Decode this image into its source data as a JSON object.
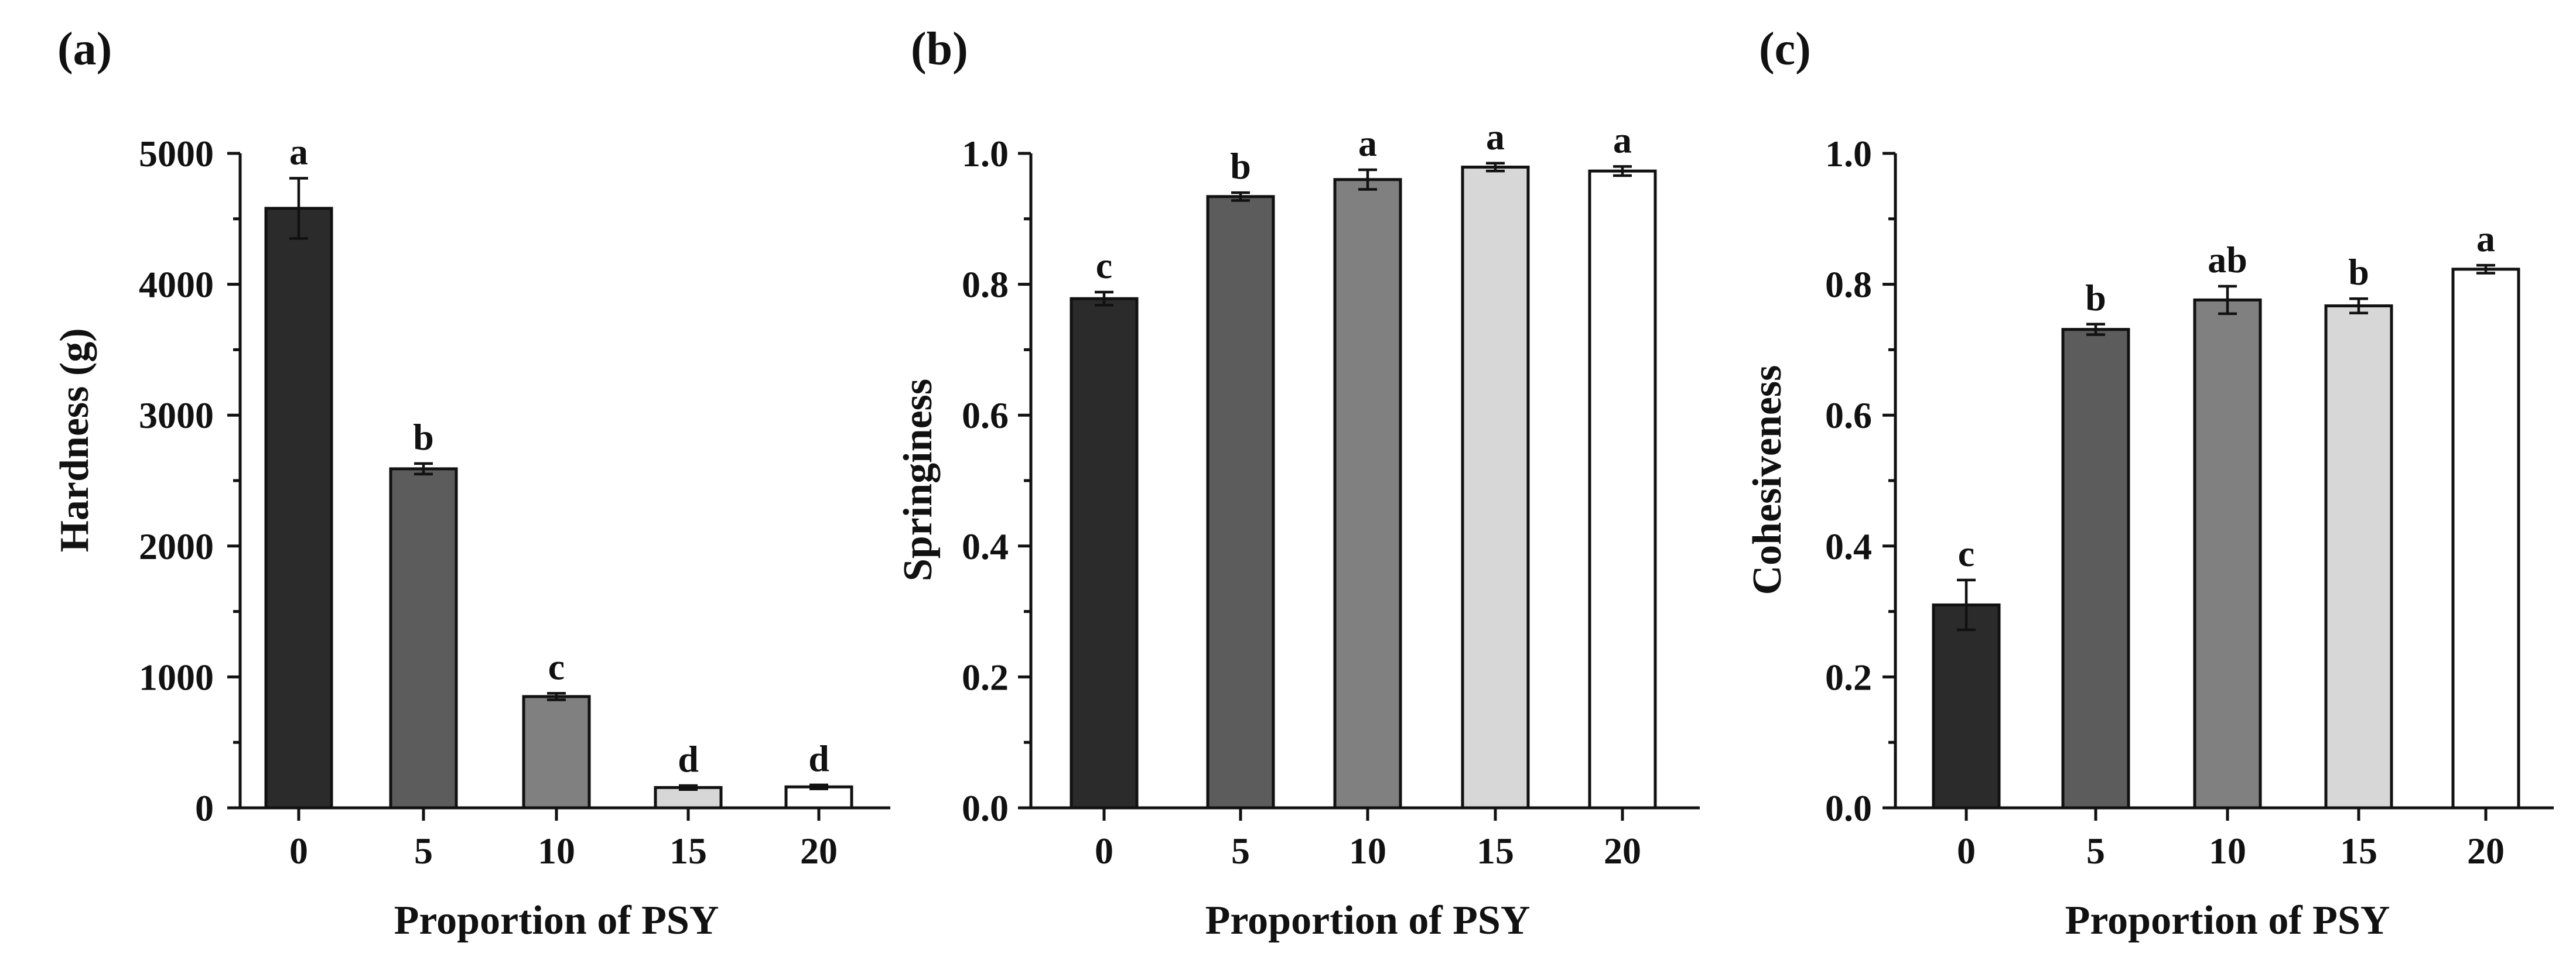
{
  "chart_data": [
    {
      "type": "bar",
      "panel": "(a)",
      "title": "",
      "xlabel": "Proportion of PSY",
      "ylabel": "Hardness (g)",
      "categories": [
        "0",
        "5",
        "10",
        "15",
        "20"
      ],
      "values": [
        4580,
        2590,
        850,
        155,
        160
      ],
      "errors": [
        230,
        40,
        25,
        15,
        15
      ],
      "significance": [
        "a",
        "b",
        "c",
        "d",
        "d"
      ],
      "ylim": [
        0,
        5000
      ],
      "yticks": [
        0,
        1000,
        2000,
        3000,
        4000,
        5000
      ],
      "ytick_labels": [
        "0",
        "1000",
        "2000",
        "3000",
        "4000",
        "5000"
      ],
      "colors": [
        "#2b2b2b",
        "#5c5c5c",
        "#808080",
        "#d6d7d6",
        "#ffffff"
      ]
    },
    {
      "type": "bar",
      "panel": "(b)",
      "title": "",
      "xlabel": "Proportion of PSY",
      "ylabel": "Springiness",
      "categories": [
        "0",
        "5",
        "10",
        "15",
        "20"
      ],
      "values": [
        0.778,
        0.934,
        0.96,
        0.979,
        0.973
      ],
      "errors": [
        0.01,
        0.006,
        0.015,
        0.006,
        0.007
      ],
      "significance": [
        "c",
        "b",
        "a",
        "a",
        "a"
      ],
      "ylim": [
        0,
        1.0
      ],
      "yticks": [
        0,
        0.2,
        0.4,
        0.6,
        0.8,
        1.0
      ],
      "ytick_labels": [
        "0.0",
        "0.2",
        "0.4",
        "0.6",
        "0.8",
        "1.0"
      ],
      "colors": [
        "#2b2b2b",
        "#5c5c5c",
        "#808080",
        "#d6d7d6",
        "#ffffff"
      ]
    },
    {
      "type": "bar",
      "panel": "(c)",
      "title": "",
      "xlabel": "Proportion of PSY",
      "ylabel": "Cohesiveness",
      "categories": [
        "0",
        "5",
        "10",
        "15",
        "20"
      ],
      "values": [
        0.31,
        0.731,
        0.776,
        0.767,
        0.823
      ],
      "errors": [
        0.038,
        0.008,
        0.021,
        0.011,
        0.006
      ],
      "significance": [
        "c",
        "b",
        "ab",
        "b",
        "a"
      ],
      "ylim": [
        0,
        1.0
      ],
      "yticks": [
        0,
        0.2,
        0.4,
        0.6,
        0.8,
        1.0
      ],
      "ytick_labels": [
        "0.0",
        "0.2",
        "0.4",
        "0.6",
        "0.8",
        "1.0"
      ],
      "colors": [
        "#2b2b2b",
        "#5c5c5c",
        "#808080",
        "#d6d7d6",
        "#ffffff"
      ]
    }
  ]
}
